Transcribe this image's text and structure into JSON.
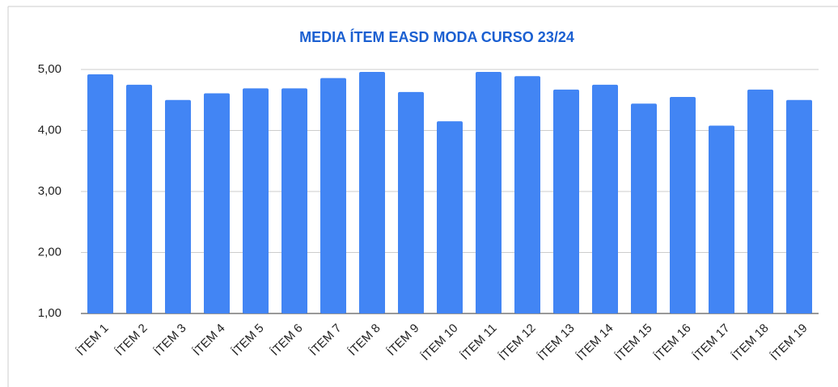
{
  "chart_data": {
    "type": "bar",
    "title": "MEDIA ÍTEM EASD MODA CURSO 23/24",
    "categories": [
      "ÍTEM 1",
      "ÍTEM 2",
      "ÍTEM 3",
      "ÍTEM 4",
      "ÍTEM 5",
      "ÍTEM 6",
      "ÍTEM 7",
      "ÍTEM 8",
      "ÍTEM 9",
      "ÍTEM 10",
      "ÍTEM 11",
      "ÍTEM 12",
      "ÍTEM 13",
      "ÍTEM 14",
      "ÍTEM 15",
      "ÍTEM 16",
      "ÍTEM 17",
      "ÍTEM 18",
      "ÍTEM 19"
    ],
    "values": [
      4.92,
      4.75,
      4.5,
      4.61,
      4.69,
      4.69,
      4.86,
      4.96,
      4.63,
      4.15,
      4.96,
      4.89,
      4.67,
      4.75,
      4.44,
      4.55,
      4.08,
      4.67,
      4.5
    ],
    "color": "#4285f4",
    "ylim": [
      1,
      5
    ],
    "yticks": [
      {
        "value": 1,
        "label": "1,00"
      },
      {
        "value": 2,
        "label": "2,00"
      },
      {
        "value": 3,
        "label": "3,00"
      },
      {
        "value": 4,
        "label": "4,00"
      },
      {
        "value": 5,
        "label": "5,00"
      }
    ],
    "grid": true
  }
}
